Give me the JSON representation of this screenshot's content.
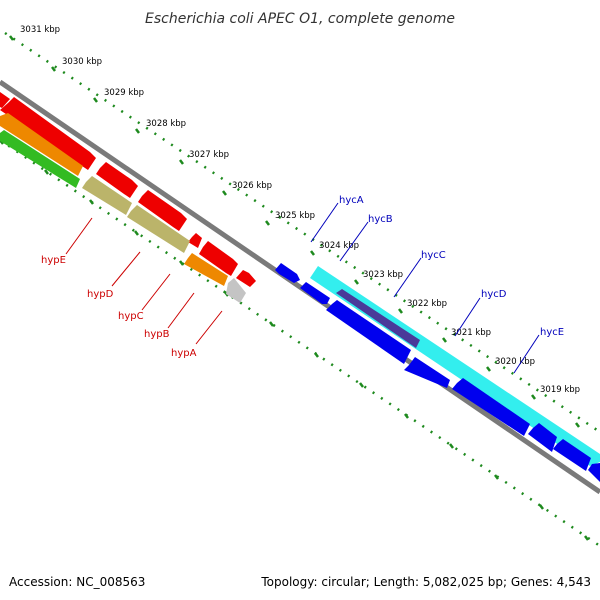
{
  "title": "Escherichia coli APEC O1, complete genome",
  "footer": {
    "accession": "Accession: NC_008563",
    "summary": "Topology: circular; Length: 5,082,025 bp; Genes: 4,543"
  },
  "colors": {
    "backbone": "#7a7a7a",
    "ruler": "#1e8a1e",
    "left_gene_labels": "#cc0000",
    "right_gene_labels": "#0000bb",
    "red_features": "#ee0000",
    "orange_feature": "#ee8800",
    "green_feature": "#33bb22",
    "olive_feature": "#bbb46a",
    "grey_feature": "#c4c4c4",
    "blue_features": "#0000ee",
    "cyan_feature": "#33eeee",
    "purple_feature": "#4a3a99"
  },
  "scale_labels": [
    "3031 kbp",
    "3030 kbp",
    "3029 kbp",
    "3028 kbp",
    "3027 kbp",
    "3026 kbp",
    "3025 kbp",
    "3024 kbp",
    "3023 kbp",
    "3022 kbp",
    "3021 kbp",
    "3020 kbp",
    "3019 kbp"
  ],
  "genes_left": [
    "hypE",
    "hypD",
    "hypC",
    "hypB",
    "hypA"
  ],
  "genes_right": [
    "hycA",
    "hycB",
    "hycC",
    "hycD",
    "hycE"
  ]
}
